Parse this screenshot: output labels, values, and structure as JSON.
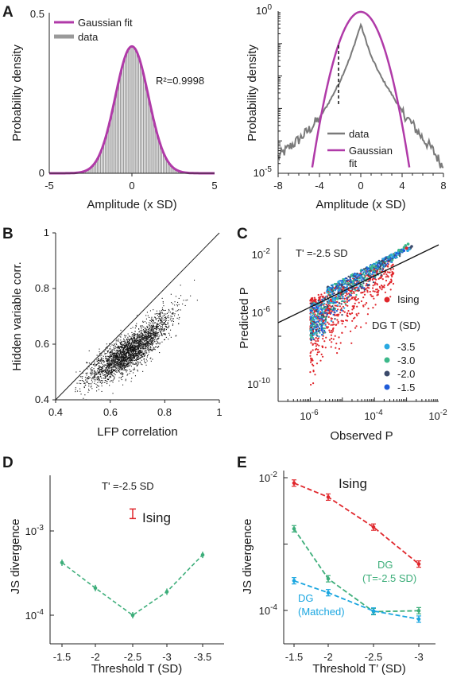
{
  "figure": {
    "panel_labels": [
      "A",
      "B",
      "C",
      "D",
      "E"
    ]
  },
  "chart_data": [
    {
      "panel": "A-left",
      "type": "bar",
      "xlabel": "Amplitude  (x SD)",
      "ylabel": "Probability density",
      "xlim": [
        -5,
        5
      ],
      "ylim": [
        0,
        0.5
      ],
      "xticks": [
        "-5",
        "0",
        "5"
      ],
      "yticks": [
        "0",
        "0.5"
      ],
      "legend": [
        "Gaussian fit",
        "data"
      ],
      "legend_position": "top-left",
      "annotation": "R²=0.9998",
      "bins": {
        "start": -4,
        "end": 4,
        "count": 81
      },
      "series": [
        {
          "name": "data",
          "kind": "histogram",
          "distribution": "standard normal",
          "color": "#9a9a9a"
        },
        {
          "name": "Gaussian fit",
          "kind": "line",
          "mean": 0,
          "sd": 1,
          "color": "#b03aa8"
        }
      ]
    },
    {
      "panel": "A-right",
      "type": "line",
      "xlabel": "Amplitude  (x SD)",
      "ylabel": "Probability density",
      "xlim": [
        -8,
        8
      ],
      "ylim": [
        "1e-5",
        "1e0"
      ],
      "yscale": "log",
      "xticks": [
        "-8",
        "-4",
        "0",
        "4",
        "8"
      ],
      "legend": [
        "data",
        "Gaussian fit"
      ],
      "legend_position": "bottom-center",
      "threshold_line_x": -2.5,
      "series": [
        {
          "name": "data",
          "color": "#7a7a7a",
          "x": [
            -8,
            -7,
            -6,
            -5,
            -4,
            -3,
            -2,
            -1,
            0,
            1,
            2,
            3,
            4,
            5,
            6,
            7,
            8
          ],
          "y": [
            3.2e-05,
            6e-05,
            0.00011,
            0.00022,
            0.0005,
            0.0017,
            0.007,
            0.04,
            0.38,
            0.04,
            0.009,
            0.0027,
            0.0008,
            0.00032,
            0.00012,
            5e-05,
            1.5e-05
          ]
        },
        {
          "name": "Gaussian fit",
          "mean": 0,
          "sd": 1,
          "color": "#b03aa8"
        }
      ]
    },
    {
      "panel": "B",
      "type": "scatter",
      "xlabel": "LFP correlation",
      "ylabel": "Hidden variable corr.",
      "xlim": [
        0.4,
        1
      ],
      "ylim": [
        0.4,
        1
      ],
      "xticks": [
        "0.4",
        "0.6",
        "0.8",
        "1"
      ],
      "yticks": [
        "0.4",
        "0.6",
        "0.8",
        "1"
      ],
      "diagonal": true,
      "point_cloud": {
        "x": [
          0.48,
          0.55,
          0.6,
          0.65,
          0.7,
          0.75,
          0.8,
          0.85,
          0.9
        ],
        "y_mean": [
          0.46,
          0.5,
          0.53,
          0.56,
          0.59,
          0.63,
          0.68,
          0.74,
          0.8
        ],
        "spread": 0.035,
        "color": "#111111"
      }
    },
    {
      "panel": "C",
      "type": "scatter",
      "xlabel": "Observed  P",
      "ylabel": "Predicted P",
      "xscale": "log",
      "yscale": "log",
      "xlim": [
        "1e-7",
        "1e-2"
      ],
      "ylim": [
        "1e-12",
        "1e-2"
      ],
      "xticks": [
        "10^-6",
        "10^-4",
        "10^-2"
      ],
      "yticks": [
        "10^-10",
        "10^-6",
        "10^-2"
      ],
      "annotation": "T' =-2.5 SD",
      "legend_title": "DG T (SD)",
      "series": [
        {
          "name": "Ising",
          "color": "#e0262b"
        },
        {
          "name": "-3.5",
          "color": "#29a9e1"
        },
        {
          "name": "-3.0",
          "color": "#3cb88a"
        },
        {
          "name": "-2.0",
          "color": "#3b4a6b"
        },
        {
          "name": "-1.5",
          "color": "#1f5bd8"
        }
      ]
    },
    {
      "panel": "D",
      "type": "line",
      "xlabel": "Threshold T  (SD)",
      "ylabel": "JS divergence",
      "yscale": "log",
      "ylim": [
        "6e-5",
        "4e-3"
      ],
      "categories": [
        "-1.5",
        "-2",
        "-2.5",
        "-3",
        "-3.5"
      ],
      "yticks": [
        "10^-4",
        "10^-3"
      ],
      "annotation": "T' =-2.5 SD",
      "series": [
        {
          "name": "",
          "color": "#3dae7a",
          "values": [
            0.00042,
            0.00021,
            0.0001,
            0.00019,
            0.00052
          ]
        }
      ],
      "ising_point": {
        "label": "Ising",
        "category": "-2.5",
        "value": 0.0016,
        "color": "#e0262b"
      }
    },
    {
      "panel": "E",
      "type": "line",
      "xlabel": "Threshold T’  (SD)",
      "ylabel": "JS divergence",
      "yscale": "log",
      "ylim": [
        "6e-5",
        "1.2e-2"
      ],
      "categories": [
        "-1.5",
        "-2",
        "-2.5",
        "-3"
      ],
      "yticks": [
        "10^-4",
        "10^-2"
      ],
      "series": [
        {
          "name": "Ising",
          "color": "#e0262b",
          "values": [
            0.0083,
            0.0051,
            0.0018,
            0.0005
          ]
        },
        {
          "name": "DG (T=-2.5 SD)",
          "color": "#3dae7a",
          "values": [
            0.0017,
            0.0003,
            9.6e-05,
            9.9e-05
          ]
        },
        {
          "name": "DG (Matched)",
          "color": "#1aa6e0",
          "values": [
            0.00028,
            0.000185,
            9.8e-05,
            7.4e-05
          ]
        }
      ],
      "series_labels": {
        "Ising": [
          "Ising"
        ],
        "DG (T=-2.5 SD)": [
          "DG",
          "(T=-2.5 SD)"
        ],
        "DG (Matched)": [
          "DG",
          "(Matched)"
        ]
      }
    }
  ]
}
